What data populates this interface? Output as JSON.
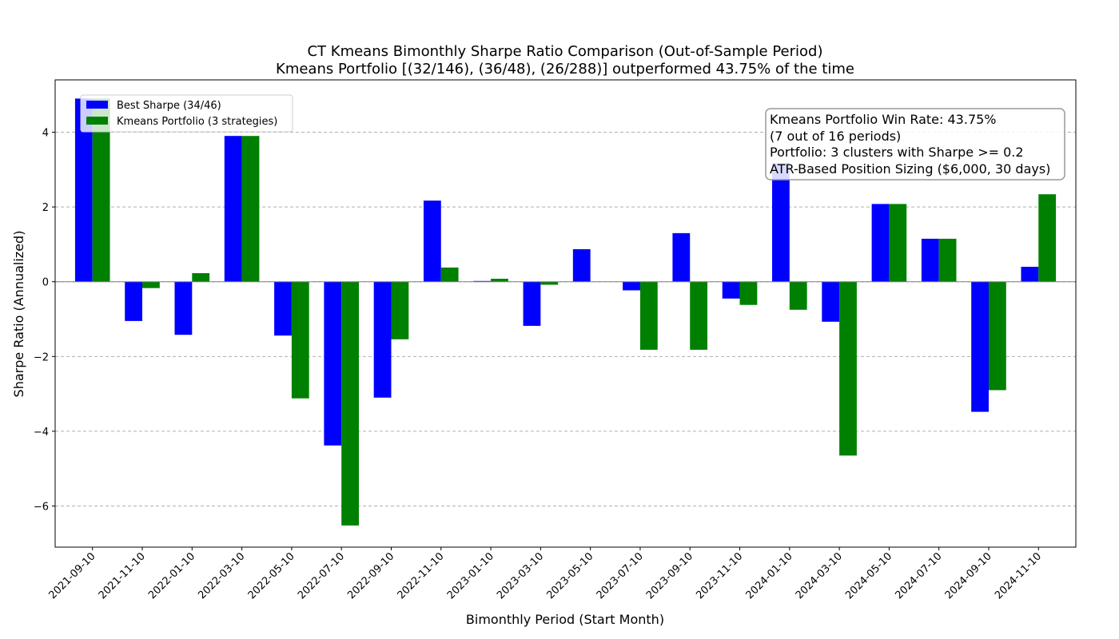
{
  "chart_data": {
    "type": "bar",
    "title": "CT Kmeans Bimonthly Sharpe Ratio Comparison (Out-of-Sample Period)",
    "subtitle": "Kmeans Portfolio [(32/146), (36/48), (26/288)] outperformed 43.75% of the time",
    "xlabel": "Bimonthly Period (Start Month)",
    "ylabel": "Sharpe Ratio (Annualized)",
    "ylim": [
      -7.1,
      5.4
    ],
    "yticks": [
      -6,
      -4,
      -2,
      0,
      2,
      4
    ],
    "ytick_labels": [
      "−6",
      "−4",
      "−2",
      "0",
      "2",
      "4"
    ],
    "grid": "y-dashed",
    "legend_position": "top-left",
    "categories": [
      "2021-09-10",
      "2021-11-10",
      "2022-01-10",
      "2022-03-10",
      "2022-05-10",
      "2022-07-10",
      "2022-09-10",
      "2022-11-10",
      "2023-01-10",
      "2023-03-10",
      "2023-05-10",
      "2023-07-10",
      "2023-09-10",
      "2023-11-10",
      "2024-01-10",
      "2024-03-10",
      "2024-05-10",
      "2024-07-10",
      "2024-09-10",
      "2024-11-10"
    ],
    "series": [
      {
        "name": "Best Sharpe (34/46)",
        "color": "#0000ff",
        "values": [
          4.9,
          -1.05,
          -1.42,
          3.9,
          -1.44,
          -4.38,
          -3.1,
          2.17,
          0.02,
          -1.18,
          0.87,
          -0.23,
          1.3,
          -0.45,
          3.17,
          -1.07,
          2.08,
          1.15,
          -3.48,
          0.4
        ]
      },
      {
        "name": "Kmeans Portfolio (3 strategies)",
        "color": "#008000",
        "values": [
          4.9,
          -0.17,
          0.23,
          3.9,
          -3.12,
          -6.52,
          -1.54,
          0.38,
          0.08,
          -0.08,
          0.0,
          -1.82,
          -1.82,
          -0.62,
          -0.75,
          -4.65,
          2.08,
          1.15,
          -2.9,
          2.34
        ]
      }
    ],
    "annotation_lines": [
      "Kmeans Portfolio Win Rate: 43.75%",
      "(7 out of 16 periods)",
      "Portfolio: 3 clusters with Sharpe >= 0.2",
      "ATR-Based Position Sizing ($6,000, 30 days)"
    ]
  }
}
